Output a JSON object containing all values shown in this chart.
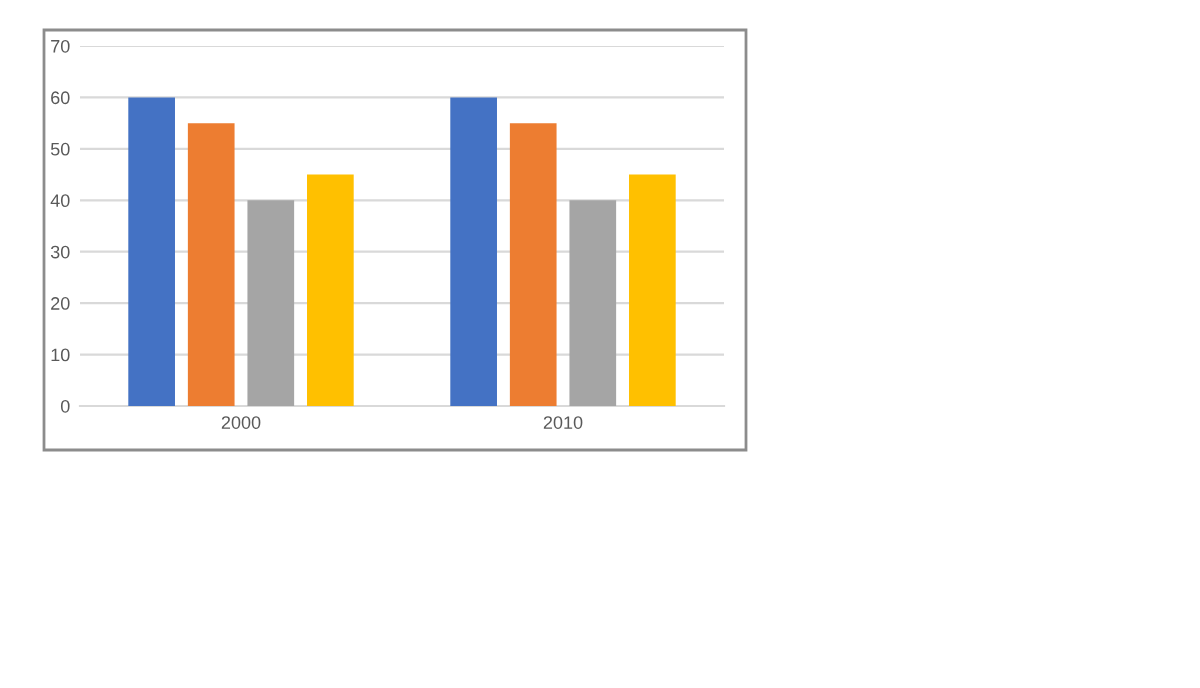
{
  "chart_data": {
    "type": "bar",
    "categories": [
      "2000",
      "2010"
    ],
    "series": [
      {
        "color": "#4472c4",
        "values": [
          60,
          60
        ]
      },
      {
        "color": "#ed7d31",
        "values": [
          55,
          55
        ]
      },
      {
        "color": "#a5a5a5",
        "values": [
          40,
          40
        ]
      },
      {
        "color": "#ffc000",
        "values": [
          45,
          45
        ]
      }
    ],
    "ylim": [
      0,
      70
    ],
    "yticks": [
      0,
      10,
      20,
      30,
      40,
      50,
      60,
      70
    ],
    "grid": "y",
    "legend": false
  }
}
